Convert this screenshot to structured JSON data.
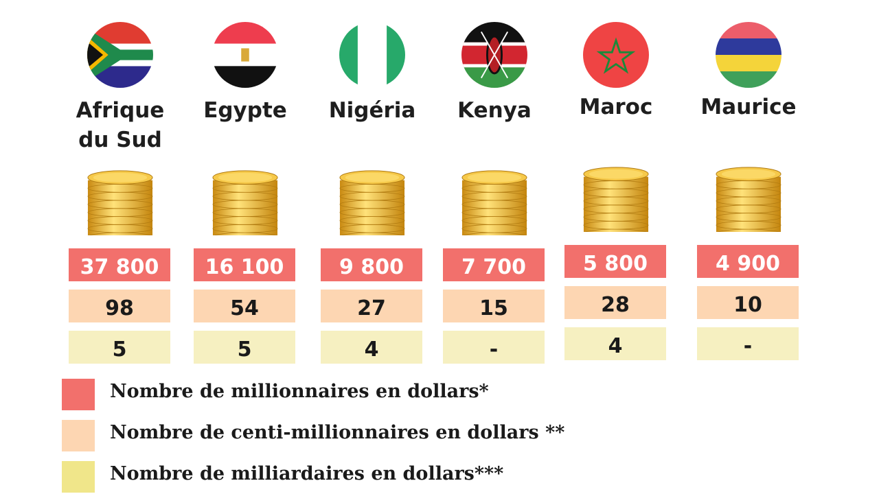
{
  "chart_data": {
    "type": "table",
    "categories": [
      "Afrique du Sud",
      "Egypte",
      "Nigéria",
      "Kenya",
      "Maroc",
      "Maurice"
    ],
    "series": [
      {
        "name": "Nombre de millionnaires en dollars*",
        "color": "#f2706c",
        "values": [
          "37 800",
          "16 100",
          "9 800",
          "7 700",
          "5 800",
          "4 900"
        ]
      },
      {
        "name": "Nombre de centi-millionnaires en dollars **",
        "color": "#fdd6b2",
        "values": [
          "98",
          "54",
          "27",
          "15",
          "28",
          "10"
        ]
      },
      {
        "name": "Nombre de milliardaires en dollars***",
        "color": "#f6f0c1",
        "values": [
          "5",
          "5",
          "4",
          "-",
          "4",
          "-"
        ]
      }
    ]
  },
  "countries": [
    {
      "line1": "Afrique",
      "line2": "du Sud",
      "flag": "south-africa-flag"
    },
    {
      "line1": "Egypte",
      "line2": "",
      "flag": "egypt-flag"
    },
    {
      "line1": "Nigéria",
      "line2": "",
      "flag": "nigeria-flag"
    },
    {
      "line1": "Kenya",
      "line2": "",
      "flag": "kenya-flag"
    },
    {
      "line1": "Maroc",
      "line2": "",
      "flag": "morocco-flag"
    },
    {
      "line1": "Maurice",
      "line2": "",
      "flag": "mauritius-flag"
    }
  ],
  "legend": [
    {
      "label": "Nombre de millionnaires en dollars*",
      "color": "#f2706c"
    },
    {
      "label": "Nombre de centi-millionnaires en dollars **",
      "color": "#fdd6b2"
    },
    {
      "label": "Nombre de milliardaires en dollars***",
      "color": "#f0e68a"
    }
  ],
  "icons": {
    "coins": "gold-coin-stack-icon"
  }
}
